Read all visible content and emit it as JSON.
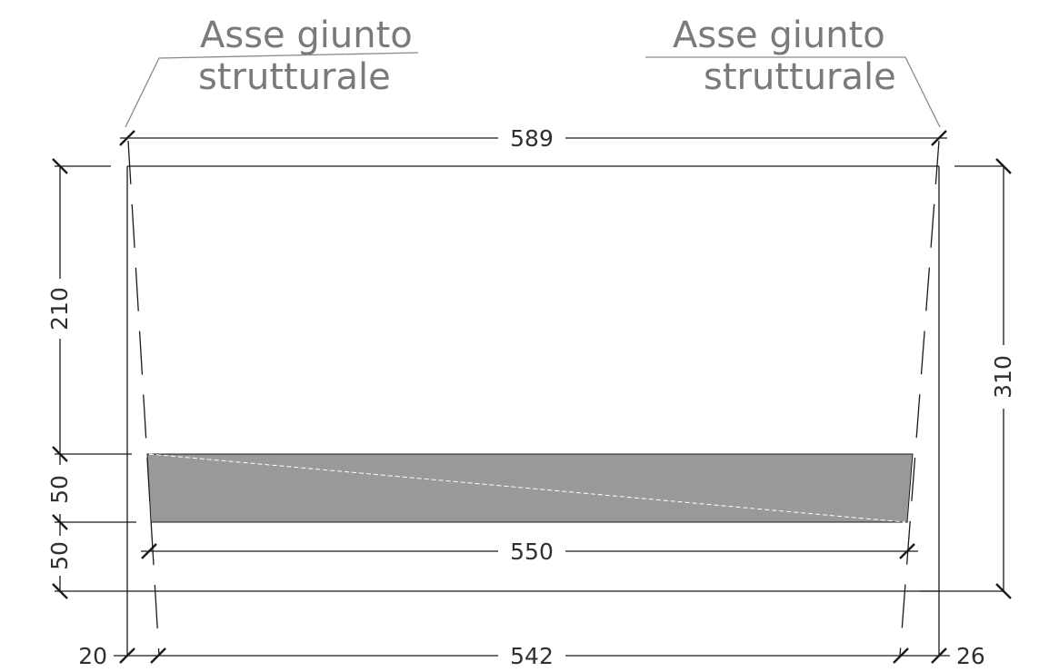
{
  "annotations": {
    "left": {
      "line1": "Asse giunto",
      "line2": "strutturale"
    },
    "right": {
      "line1": "Asse giunto",
      "line2": "strutturale"
    }
  },
  "dimensions": {
    "top_width": "589",
    "slab_width": "550",
    "bottom_width": "542",
    "left_offset": "20",
    "right_offset": "26",
    "height_upper": "210",
    "slab_thickness": "50",
    "height_lower": "50",
    "total_height": "310"
  },
  "colors": {
    "slab_fill": "#999999",
    "line": "#1a1a1a",
    "leader": "#8a8a8a"
  }
}
